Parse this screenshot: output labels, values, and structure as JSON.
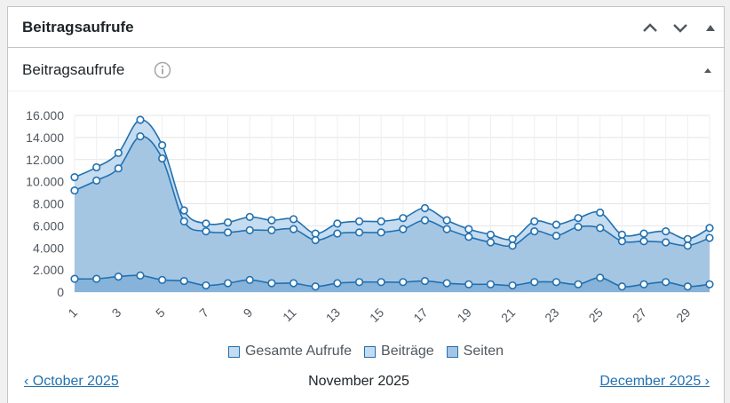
{
  "widget": {
    "title": "Beitragsaufrufe",
    "subtitle": "Beitragsaufrufe"
  },
  "icons": {
    "move_up": "chevron-up-icon",
    "move_down": "chevron-down-icon",
    "toggle": "triangle-up-icon",
    "info": "info-icon"
  },
  "colors": {
    "line": "#2271b1",
    "fill_total": "#c5dbef",
    "fill_posts": "#a5c6e3",
    "fill_pages": "#87b2d9"
  },
  "chart_data": {
    "type": "area",
    "x": [
      1,
      2,
      3,
      4,
      5,
      6,
      7,
      8,
      9,
      10,
      11,
      12,
      13,
      14,
      15,
      16,
      17,
      18,
      19,
      20,
      21,
      22,
      23,
      24,
      25,
      26,
      27,
      28,
      29,
      30
    ],
    "x_tick_labels": [
      "1",
      "3",
      "5",
      "7",
      "9",
      "11",
      "13",
      "15",
      "17",
      "19",
      "21",
      "23",
      "25",
      "27",
      "29"
    ],
    "y_tick_labels": [
      "16.000",
      "14.000",
      "12.000",
      "10.000",
      "8.000",
      "6.000",
      "4.000",
      "2.000",
      "0"
    ],
    "ylim": [
      0,
      16000
    ],
    "grid": true,
    "legend_position": "bottom",
    "series": [
      {
        "name": "Gesamte Aufrufe",
        "values": [
          10400,
          11300,
          12600,
          15600,
          13300,
          7400,
          6200,
          6300,
          6800,
          6500,
          6600,
          5300,
          6200,
          6400,
          6400,
          6700,
          7600,
          6500,
          5700,
          5200,
          4800,
          6400,
          6100,
          6700,
          7200,
          5200,
          5300,
          5500,
          4800,
          5800
        ]
      },
      {
        "name": "Beiträge",
        "values": [
          9200,
          10100,
          11200,
          14100,
          12100,
          6400,
          5500,
          5400,
          5600,
          5600,
          5700,
          4700,
          5300,
          5400,
          5400,
          5700,
          6500,
          5700,
          5000,
          4500,
          4200,
          5500,
          5100,
          5900,
          5800,
          4600,
          4600,
          4500,
          4200,
          4900
        ]
      },
      {
        "name": "Seiten",
        "values": [
          1200,
          1200,
          1400,
          1500,
          1100,
          1000,
          600,
          800,
          1100,
          800,
          800,
          500,
          800,
          900,
          900,
          900,
          1000,
          800,
          700,
          700,
          600,
          900,
          900,
          700,
          1300,
          500,
          700,
          900,
          500,
          700
        ]
      }
    ]
  },
  "navigation": {
    "prev": "‹ October 2025",
    "current": "November 2025",
    "next": "December 2025 ›"
  }
}
